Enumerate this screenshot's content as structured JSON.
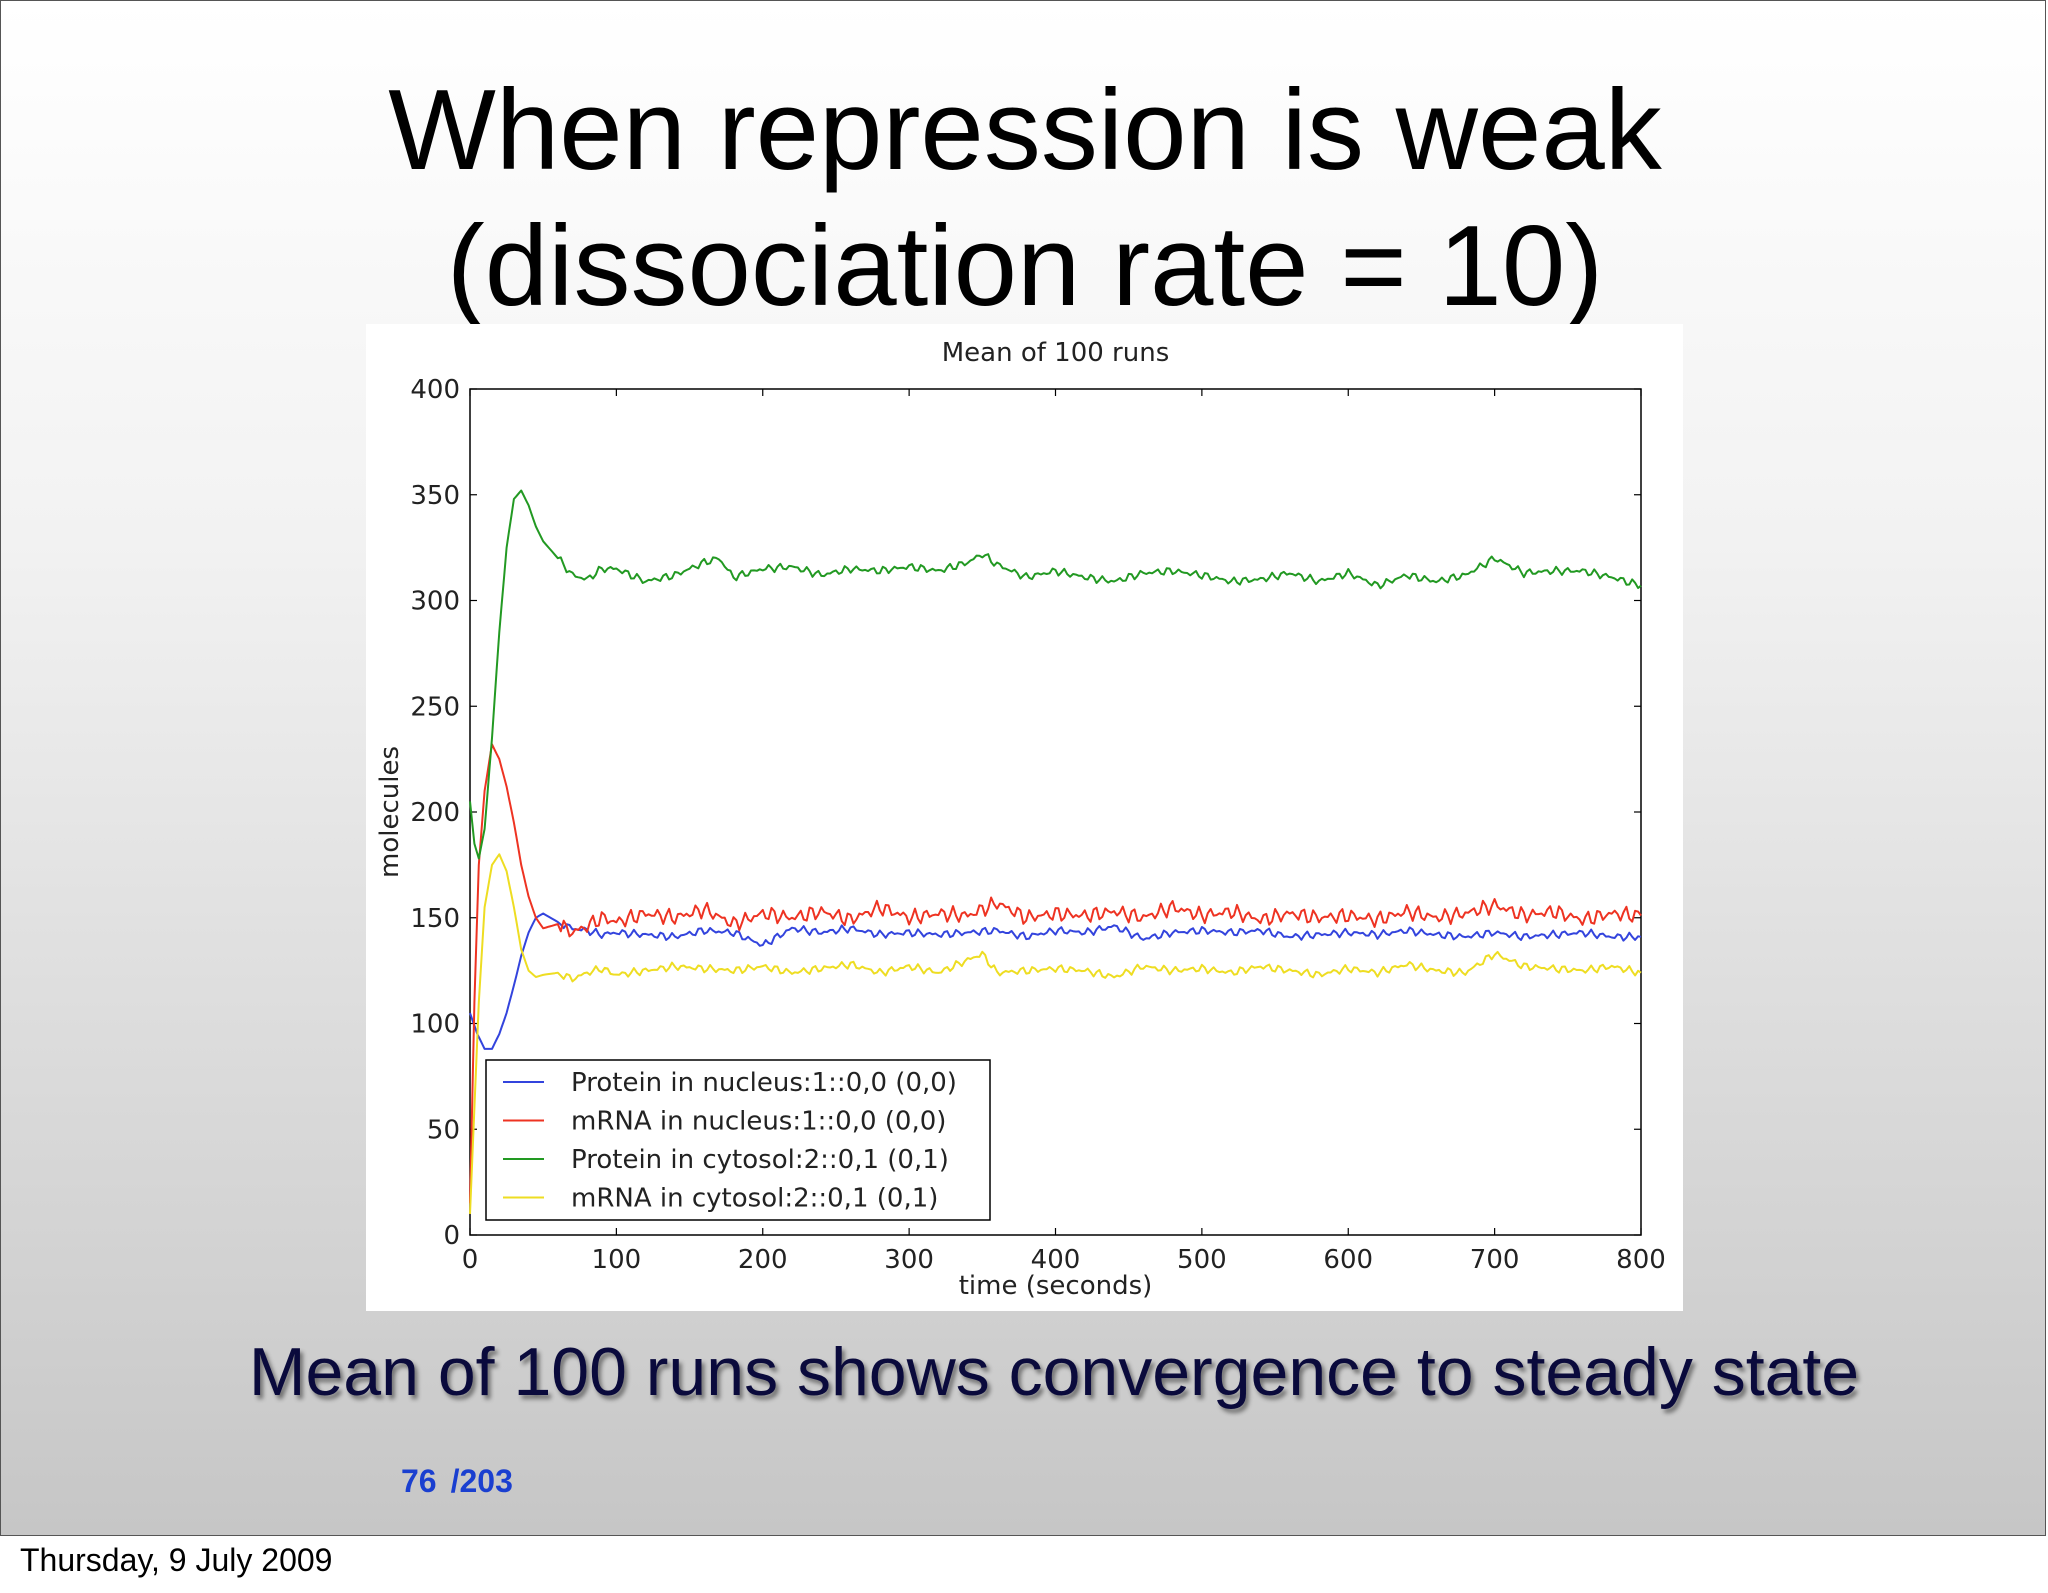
{
  "slide": {
    "title_line1": "When repression is weak",
    "title_line2": "(dissociation rate = 10)",
    "subtitle": "Mean of 100 runs shows convergence to steady state",
    "page_current": "76",
    "page_total": "/203",
    "footer_date": "Thursday, 9 July 2009"
  },
  "chart_data": {
    "type": "line",
    "title": "Mean of 100 runs",
    "xlabel": "time (seconds)",
    "ylabel": "molecules",
    "xlim": [
      0,
      800
    ],
    "ylim": [
      0,
      400
    ],
    "xticks": [
      0,
      100,
      200,
      300,
      400,
      500,
      600,
      700,
      800
    ],
    "yticks": [
      0,
      50,
      100,
      150,
      200,
      250,
      300,
      350,
      400
    ],
    "grid": false,
    "legend_position": "lower-left",
    "series": [
      {
        "name": "Protein in nucleus:1::0,0 (0,0)",
        "color": "#3344dd",
        "x": [
          0,
          5,
          10,
          15,
          20,
          25,
          30,
          35,
          40,
          45,
          50,
          60,
          70,
          80,
          90,
          100,
          120,
          140,
          160,
          180,
          200,
          220,
          240,
          260,
          280,
          300,
          320,
          340,
          360,
          380,
          400,
          420,
          440,
          460,
          480,
          500,
          520,
          540,
          560,
          580,
          600,
          620,
          640,
          660,
          680,
          700,
          720,
          740,
          760,
          780,
          800
        ],
        "y": [
          105,
          95,
          88,
          88,
          95,
          105,
          118,
          132,
          143,
          150,
          152,
          148,
          145,
          144,
          142,
          143,
          142,
          141,
          144,
          143,
          137,
          145,
          143,
          145,
          142,
          143,
          142,
          143,
          144,
          141,
          144,
          143,
          146,
          140,
          143,
          144,
          143,
          144,
          141,
          142,
          143,
          142,
          144,
          142,
          141,
          143,
          141,
          142,
          143,
          141,
          141
        ]
      },
      {
        "name": "mRNA in nucleus:1::0,0 (0,0)",
        "color": "#ee3322",
        "x": [
          0,
          3,
          6,
          10,
          15,
          20,
          25,
          30,
          35,
          40,
          45,
          50,
          60,
          70,
          80,
          90,
          100,
          120,
          140,
          160,
          180,
          200,
          220,
          240,
          260,
          280,
          300,
          320,
          340,
          360,
          380,
          400,
          420,
          440,
          460,
          480,
          500,
          520,
          540,
          560,
          580,
          600,
          620,
          640,
          660,
          680,
          700,
          720,
          740,
          760,
          780,
          800
        ],
        "y": [
          15,
          110,
          175,
          210,
          232,
          225,
          212,
          195,
          175,
          160,
          150,
          145,
          147,
          143,
          146,
          150,
          148,
          152,
          150,
          154,
          147,
          152,
          150,
          153,
          149,
          155,
          150,
          152,
          151,
          157,
          150,
          152,
          151,
          153,
          150,
          155,
          151,
          153,
          149,
          152,
          150,
          151,
          149,
          153,
          150,
          152,
          156,
          151,
          153,
          149,
          152,
          151
        ]
      },
      {
        "name": "Protein in cytosol:2::0,1 (0,1)",
        "color": "#229922",
        "x": [
          0,
          3,
          6,
          10,
          15,
          20,
          25,
          30,
          35,
          40,
          45,
          50,
          60,
          70,
          80,
          90,
          100,
          120,
          140,
          160,
          170,
          180,
          200,
          220,
          240,
          260,
          280,
          300,
          320,
          340,
          350,
          360,
          380,
          400,
          420,
          440,
          460,
          480,
          500,
          520,
          540,
          560,
          580,
          600,
          620,
          640,
          660,
          680,
          700,
          720,
          740,
          760,
          780,
          800
        ],
        "y": [
          205,
          185,
          178,
          192,
          235,
          285,
          325,
          348,
          352,
          345,
          335,
          328,
          320,
          312,
          310,
          315,
          315,
          309,
          312,
          318,
          320,
          311,
          315,
          316,
          312,
          315,
          314,
          316,
          314,
          318,
          322,
          317,
          311,
          314,
          311,
          309,
          313,
          314,
          312,
          309,
          310,
          313,
          309,
          313,
          307,
          312,
          309,
          312,
          320,
          313,
          314,
          314,
          311,
          307
        ]
      },
      {
        "name": "mRNA in cytosol:2::0,1 (0,1)",
        "color": "#eedd22",
        "x": [
          0,
          3,
          6,
          10,
          15,
          20,
          25,
          30,
          35,
          40,
          45,
          50,
          60,
          70,
          80,
          90,
          100,
          120,
          140,
          160,
          180,
          200,
          220,
          240,
          260,
          280,
          300,
          320,
          340,
          350,
          360,
          380,
          400,
          420,
          440,
          460,
          480,
          500,
          520,
          540,
          560,
          580,
          600,
          620,
          640,
          660,
          680,
          700,
          720,
          740,
          760,
          780,
          800
        ],
        "y": [
          10,
          60,
          110,
          155,
          175,
          180,
          172,
          155,
          135,
          125,
          122,
          123,
          124,
          121,
          124,
          126,
          123,
          125,
          127,
          126,
          125,
          127,
          124,
          126,
          128,
          124,
          127,
          124,
          130,
          133,
          124,
          125,
          126,
          125,
          122,
          127,
          125,
          126,
          124,
          127,
          125,
          123,
          126,
          124,
          128,
          125,
          124,
          133,
          127,
          126,
          125,
          127,
          124
        ]
      }
    ]
  }
}
